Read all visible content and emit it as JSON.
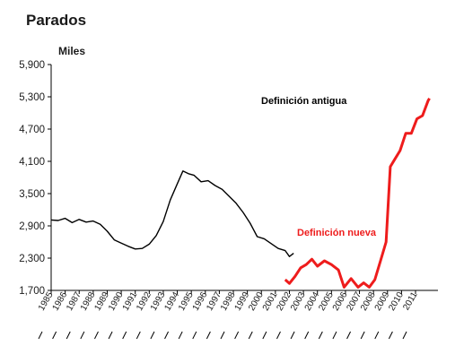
{
  "title": "Parados",
  "chart_data": {
    "type": "line",
    "ylabel": "Miles",
    "ylim": [
      1700,
      5900
    ],
    "yticks": [
      "1,700",
      "2,300",
      "2,900",
      "3,500",
      "4,100",
      "4,700",
      "5,300",
      "5,900"
    ],
    "ytick_values": [
      1700,
      2300,
      2900,
      3500,
      4100,
      4700,
      5300,
      5900
    ],
    "xticks": [
      "1985",
      "1986",
      "1987",
      "1988",
      "1989",
      "1990",
      "1991",
      "1992",
      "1993",
      "1994",
      "1995",
      "1996",
      "1997",
      "1998",
      "1999",
      "2000",
      "2001",
      "2002",
      "2003",
      "2004",
      "2005",
      "2006",
      "2007",
      "2008",
      "2009",
      "2010",
      "2011"
    ],
    "xlim": [
      1985.0,
      2012.6
    ],
    "grid": false,
    "series": [
      {
        "name": "Definición antigua",
        "color": "#000000",
        "points": [
          [
            1985.0,
            3010
          ],
          [
            1985.5,
            3000
          ],
          [
            1986.0,
            3040
          ],
          [
            1986.5,
            2960
          ],
          [
            1987.0,
            3020
          ],
          [
            1987.5,
            2970
          ],
          [
            1988.0,
            2990
          ],
          [
            1988.5,
            2930
          ],
          [
            1989.0,
            2800
          ],
          [
            1989.5,
            2640
          ],
          [
            1990.0,
            2580
          ],
          [
            1990.5,
            2520
          ],
          [
            1991.0,
            2470
          ],
          [
            1991.5,
            2480
          ],
          [
            1992.0,
            2560
          ],
          [
            1992.5,
            2720
          ],
          [
            1993.0,
            2980
          ],
          [
            1993.5,
            3380
          ],
          [
            1994.0,
            3680
          ],
          [
            1994.4,
            3920
          ],
          [
            1994.8,
            3870
          ],
          [
            1995.2,
            3840
          ],
          [
            1995.7,
            3720
          ],
          [
            1996.2,
            3740
          ],
          [
            1996.7,
            3650
          ],
          [
            1997.2,
            3580
          ],
          [
            1997.7,
            3450
          ],
          [
            1998.2,
            3320
          ],
          [
            1998.7,
            3150
          ],
          [
            1999.2,
            2950
          ],
          [
            1999.7,
            2700
          ],
          [
            2000.2,
            2660
          ],
          [
            2000.7,
            2570
          ],
          [
            2001.2,
            2480
          ],
          [
            2001.7,
            2440
          ],
          [
            2002.0,
            2330
          ],
          [
            2002.3,
            2390
          ]
        ],
        "label_position": "upper center"
      },
      {
        "name": "Definición nueva",
        "color": "#ee1c1c",
        "points": [
          [
            2001.7,
            1900
          ],
          [
            2002.0,
            1830
          ],
          [
            2002.4,
            1960
          ],
          [
            2002.8,
            2120
          ],
          [
            2003.2,
            2180
          ],
          [
            2003.6,
            2280
          ],
          [
            2004.0,
            2150
          ],
          [
            2004.5,
            2250
          ],
          [
            2005.0,
            2180
          ],
          [
            2005.5,
            2080
          ],
          [
            2005.9,
            1760
          ],
          [
            2006.4,
            1920
          ],
          [
            2006.9,
            1760
          ],
          [
            2007.3,
            1840
          ],
          [
            2007.7,
            1760
          ],
          [
            2008.1,
            1900
          ],
          [
            2008.5,
            2250
          ],
          [
            2008.9,
            2600
          ],
          [
            2009.2,
            4000
          ],
          [
            2009.5,
            4130
          ],
          [
            2009.9,
            4300
          ],
          [
            2010.3,
            4620
          ],
          [
            2010.7,
            4620
          ],
          [
            2011.1,
            4890
          ],
          [
            2011.5,
            4950
          ],
          [
            2011.9,
            5230
          ],
          [
            2012.0,
            5270
          ]
        ],
        "label_position": "center"
      }
    ]
  }
}
